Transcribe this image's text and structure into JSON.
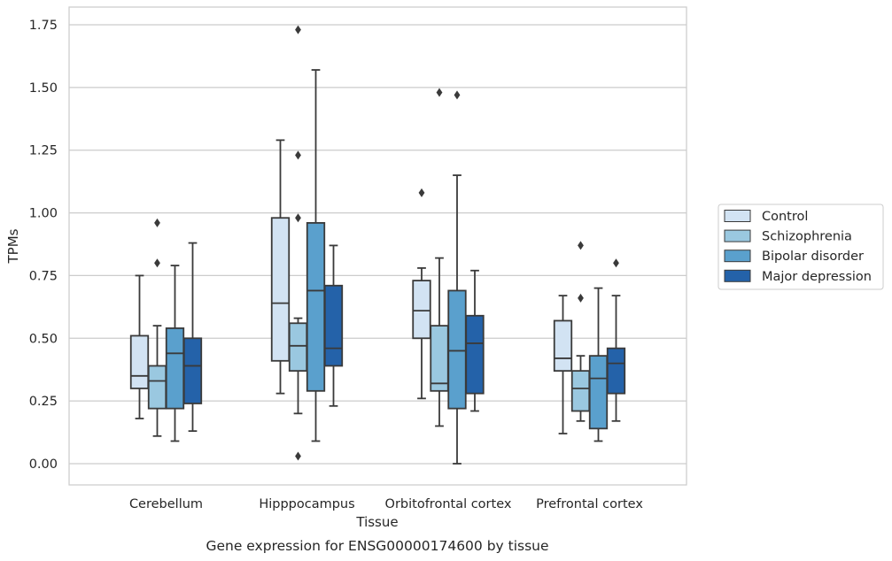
{
  "chart_data": {
    "type": "box",
    "title": "",
    "caption": "Gene expression for ENSG00000174600 by tissue",
    "xlabel": "Tissue",
    "ylabel": "TPMs",
    "ylim": [
      -0.08,
      1.82
    ],
    "yticks": [
      "0.00",
      "0.25",
      "0.50",
      "0.75",
      "1.00",
      "1.25",
      "1.50",
      "1.75"
    ],
    "grid": true,
    "legend_position": "right",
    "categories": [
      "Cerebellum",
      "Hipppocampus",
      "Orbitofrontal cortex",
      "Prefrontal cortex"
    ],
    "series": [
      {
        "name": "Control",
        "color": "#d2e3f3",
        "boxes": [
          {
            "whislo": 0.18,
            "q1": 0.3,
            "med": 0.35,
            "q3": 0.51,
            "whishi": 0.75,
            "fliers": []
          },
          {
            "whislo": 0.28,
            "q1": 0.41,
            "med": 0.64,
            "q3": 0.98,
            "whishi": 1.29,
            "fliers": []
          },
          {
            "whislo": 0.26,
            "q1": 0.5,
            "med": 0.61,
            "q3": 0.73,
            "whishi": 0.78,
            "fliers": [
              1.08
            ]
          },
          {
            "whislo": 0.12,
            "q1": 0.37,
            "med": 0.42,
            "q3": 0.57,
            "whishi": 0.67,
            "fliers": []
          }
        ]
      },
      {
        "name": "Schizophrenia",
        "color": "#9ac8e0",
        "boxes": [
          {
            "whislo": 0.11,
            "q1": 0.22,
            "med": 0.33,
            "q3": 0.39,
            "whishi": 0.55,
            "fliers": [
              0.8,
              0.96
            ]
          },
          {
            "whislo": 0.2,
            "q1": 0.37,
            "med": 0.47,
            "q3": 0.56,
            "whishi": 0.58,
            "fliers": [
              0.98,
              1.23,
              1.73,
              0.03
            ]
          },
          {
            "whislo": 0.15,
            "q1": 0.29,
            "med": 0.32,
            "q3": 0.55,
            "whishi": 0.82,
            "fliers": [
              1.48
            ]
          },
          {
            "whislo": 0.17,
            "q1": 0.21,
            "med": 0.3,
            "q3": 0.37,
            "whishi": 0.43,
            "fliers": [
              0.66,
              0.87
            ]
          }
        ]
      },
      {
        "name": "Bipolar disorder",
        "color": "#5aa0cd",
        "boxes": [
          {
            "whislo": 0.09,
            "q1": 0.22,
            "med": 0.44,
            "q3": 0.54,
            "whishi": 0.79,
            "fliers": []
          },
          {
            "whislo": 0.09,
            "q1": 0.29,
            "med": 0.69,
            "q3": 0.96,
            "whishi": 1.57,
            "fliers": []
          },
          {
            "whislo": 0.0,
            "q1": 0.22,
            "med": 0.45,
            "q3": 0.69,
            "whishi": 1.15,
            "fliers": [
              1.47
            ]
          },
          {
            "whislo": 0.09,
            "q1": 0.14,
            "med": 0.34,
            "q3": 0.43,
            "whishi": 0.7,
            "fliers": []
          }
        ]
      },
      {
        "name": "Major depression",
        "color": "#2462a9",
        "boxes": [
          {
            "whislo": 0.13,
            "q1": 0.24,
            "med": 0.39,
            "q3": 0.5,
            "whishi": 0.88,
            "fliers": []
          },
          {
            "whislo": 0.23,
            "q1": 0.39,
            "med": 0.46,
            "q3": 0.71,
            "whishi": 0.87,
            "fliers": []
          },
          {
            "whislo": 0.21,
            "q1": 0.28,
            "med": 0.48,
            "q3": 0.59,
            "whishi": 0.77,
            "fliers": []
          },
          {
            "whislo": 0.17,
            "q1": 0.28,
            "med": 0.4,
            "q3": 0.46,
            "whishi": 0.67,
            "fliers": [
              0.8
            ]
          }
        ]
      }
    ]
  }
}
